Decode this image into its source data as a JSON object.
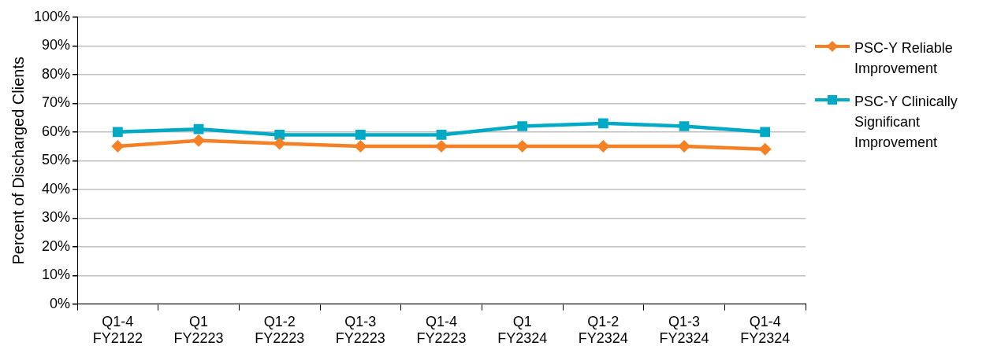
{
  "chart_data": {
    "type": "line",
    "categories": [
      "Q1-4\nFY2122",
      "Q1\nFY2223",
      "Q1-2\nFY2223",
      "Q1-3\nFY2223",
      "Q1-4\nFY2223",
      "Q1\nFY2324",
      "Q1-2\nFY2324",
      "Q1-3\nFY2324",
      "Q1-4\nFY2324"
    ],
    "series": [
      {
        "name": "PSC-Y Reliable Improvement",
        "color": "#f58025",
        "marker": "diamond",
        "values": [
          55,
          57,
          56,
          55,
          55,
          55,
          55,
          55,
          54
        ]
      },
      {
        "name": "PSC-Y Clinically Significant Improvement",
        "color": "#00aac5",
        "marker": "square",
        "values": [
          60,
          61,
          59,
          59,
          59,
          62,
          63,
          62,
          60
        ]
      }
    ],
    "ylabel": "Percent of Discharged Clients",
    "ylim": [
      0,
      100
    ],
    "yticks": [
      {
        "value": 0,
        "label": "0%"
      },
      {
        "value": 10,
        "label": "10%"
      },
      {
        "value": 20,
        "label": "20%"
      },
      {
        "value": 30,
        "label": "30%"
      },
      {
        "value": 40,
        "label": "40%"
      },
      {
        "value": 50,
        "label": "50%"
      },
      {
        "value": 60,
        "label": "60%"
      },
      {
        "value": 70,
        "label": "70%"
      },
      {
        "value": 80,
        "label": "80%"
      },
      {
        "value": 90,
        "label": "90%"
      },
      {
        "value": 100,
        "label": "100%"
      }
    ],
    "grid": "y",
    "legend": "right",
    "line_style": "solid"
  }
}
